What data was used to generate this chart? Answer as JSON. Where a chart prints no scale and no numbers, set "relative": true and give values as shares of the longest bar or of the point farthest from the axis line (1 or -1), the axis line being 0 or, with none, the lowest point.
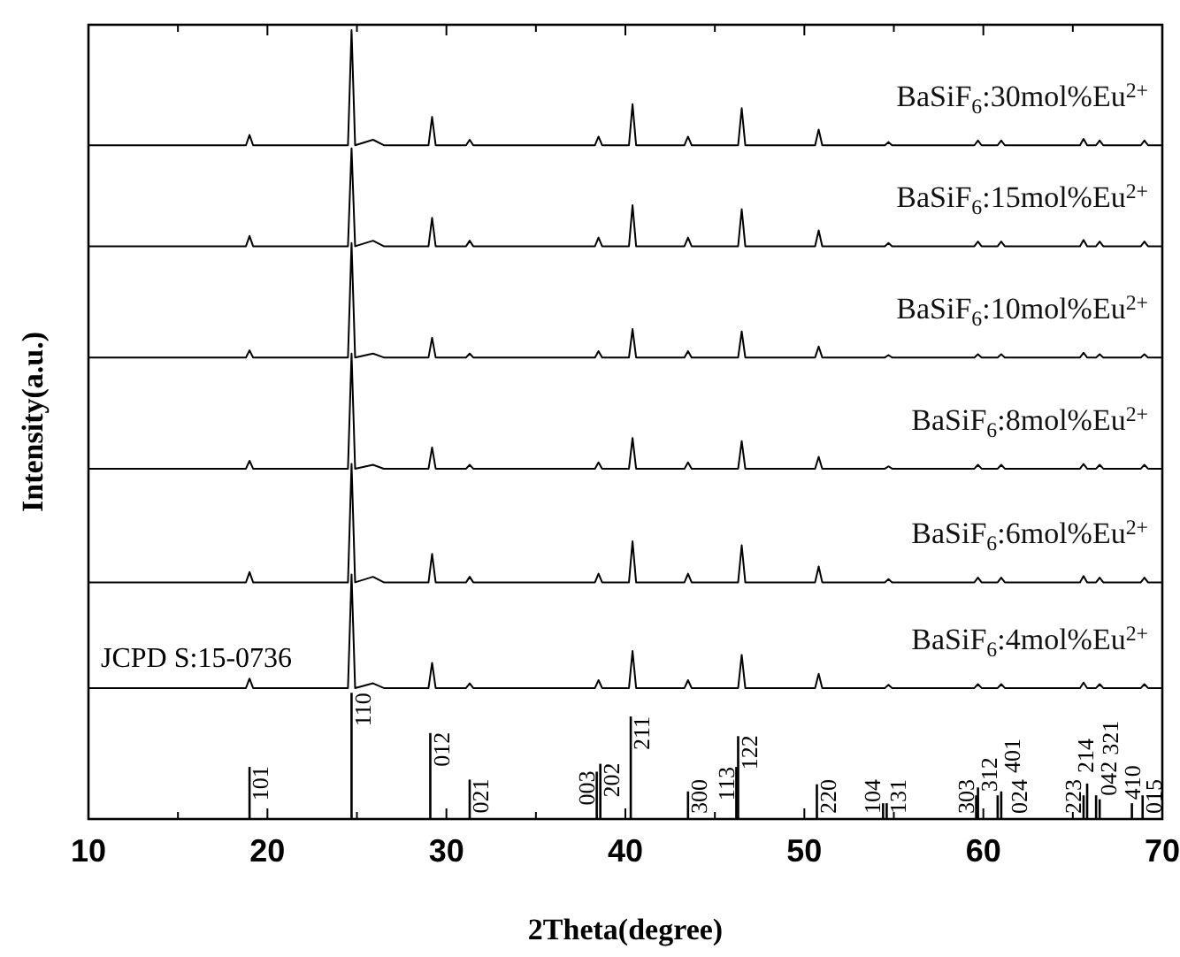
{
  "chart_data": {
    "type": "line",
    "relative": true,
    "xlabel": "2Theta(degree)",
    "ylabel": "Intensity(a.u.)",
    "xlim": [
      10,
      70
    ],
    "xticks": [
      10,
      {
        "value": 15,
        "label": null
      },
      20,
      {
        "value": 25,
        "label": null
      },
      30,
      {
        "value": 35,
        "label": null
      },
      40,
      {
        "value": 45,
        "label": null
      },
      50,
      {
        "value": 55,
        "label": null
      },
      60,
      {
        "value": 65,
        "label": null
      },
      70
    ],
    "x": [
      10,
      18.8,
      19.0,
      19.2,
      24.5,
      24.7,
      24.9,
      25.9,
      26.5,
      29.0,
      29.2,
      29.4,
      31.1,
      31.3,
      31.5,
      38.3,
      38.5,
      38.7,
      40.2,
      40.4,
      40.6,
      43.3,
      43.5,
      43.7,
      46.3,
      46.5,
      46.7,
      50.6,
      50.8,
      51.0,
      54.5,
      54.7,
      54.9,
      59.5,
      59.7,
      59.9,
      60.8,
      61.0,
      61.2,
      65.4,
      65.6,
      65.8,
      66.3,
      66.5,
      66.7,
      68.8,
      69.0,
      69.2,
      70
    ],
    "series": [
      {
        "name": "BaSiF$_{6}$:30mol%Eu$^{2+}$",
        "color": "#000000",
        "values": [
          0.854,
          0.854,
          0.867,
          0.854,
          0.854,
          1,
          0.854,
          0.861,
          0.854,
          0.854,
          0.89,
          0.854,
          0.854,
          0.861,
          0.854,
          0.854,
          0.865,
          0.854,
          0.854,
          0.906,
          0.854,
          0.854,
          0.865,
          0.854,
          0.854,
          0.901,
          0.854,
          0.854,
          0.874,
          0.854,
          0.854,
          0.858,
          0.854,
          0.854,
          0.86,
          0.854,
          0.854,
          0.86,
          0.854,
          0.854,
          0.862,
          0.854,
          0.854,
          0.86,
          0.854,
          0.854,
          0.86,
          0.854,
          0.854
        ]
      },
      {
        "name": "BaSiF$_{6}$:15mol%Eu$^{2+}$",
        "color": "#000000",
        "values": [
          0.726,
          0.726,
          0.739,
          0.726,
          0.726,
          0.85,
          0.726,
          0.733,
          0.726,
          0.726,
          0.762,
          0.726,
          0.726,
          0.733,
          0.726,
          0.726,
          0.737,
          0.726,
          0.726,
          0.778,
          0.726,
          0.726,
          0.737,
          0.726,
          0.726,
          0.773,
          0.726,
          0.726,
          0.746,
          0.726,
          0.726,
          0.73,
          0.726,
          0.726,
          0.732,
          0.726,
          0.726,
          0.732,
          0.726,
          0.726,
          0.734,
          0.726,
          0.726,
          0.732,
          0.726,
          0.726,
          0.732,
          0.726,
          0.726
        ]
      },
      {
        "name": "BaSiF$_{6}$:10mol%Eu$^{2+}$",
        "color": "#000000",
        "values": [
          0.585,
          0.585,
          0.594,
          0.585,
          0.585,
          0.73,
          0.585,
          0.59,
          0.585,
          0.585,
          0.61,
          0.585,
          0.585,
          0.59,
          0.585,
          0.585,
          0.593,
          0.585,
          0.585,
          0.621,
          0.585,
          0.585,
          0.593,
          0.585,
          0.585,
          0.618,
          0.585,
          0.585,
          0.599,
          0.585,
          0.585,
          0.588,
          0.585,
          0.585,
          0.589,
          0.585,
          0.585,
          0.589,
          0.585,
          0.585,
          0.591,
          0.585,
          0.585,
          0.589,
          0.585,
          0.585,
          0.589,
          0.585,
          0.585
        ]
      },
      {
        "name": "BaSiF$_{6}$:8mol%Eu$^{2+}$",
        "color": "#000000",
        "values": [
          0.444,
          0.444,
          0.454,
          0.444,
          0.444,
          0.59,
          0.444,
          0.449,
          0.444,
          0.444,
          0.471,
          0.444,
          0.444,
          0.449,
          0.444,
          0.444,
          0.452,
          0.444,
          0.444,
          0.483,
          0.444,
          0.444,
          0.452,
          0.444,
          0.444,
          0.479,
          0.444,
          0.444,
          0.459,
          0.444,
          0.444,
          0.447,
          0.444,
          0.444,
          0.449,
          0.444,
          0.444,
          0.449,
          0.444,
          0.444,
          0.45,
          0.444,
          0.444,
          0.449,
          0.444,
          0.444,
          0.449,
          0.444,
          0.444
        ]
      },
      {
        "name": "BaSiF$_{6}$:6mol%Eu$^{2+}$",
        "color": "#000000",
        "values": [
          0.3,
          0.3,
          0.313,
          0.3,
          0.3,
          0.45,
          0.3,
          0.307,
          0.3,
          0.3,
          0.336,
          0.3,
          0.3,
          0.307,
          0.3,
          0.3,
          0.311,
          0.3,
          0.3,
          0.352,
          0.3,
          0.3,
          0.311,
          0.3,
          0.3,
          0.347,
          0.3,
          0.3,
          0.32,
          0.3,
          0.3,
          0.304,
          0.3,
          0.3,
          0.306,
          0.3,
          0.3,
          0.306,
          0.3,
          0.3,
          0.308,
          0.3,
          0.3,
          0.306,
          0.3,
          0.3,
          0.306,
          0.3,
          0.3
        ]
      },
      {
        "name": "BaSiF$_{6}$:4mol%Eu$^{2+}$",
        "color": "#000000",
        "values": [
          0.166,
          0.166,
          0.178,
          0.166,
          0.166,
          0.31,
          0.166,
          0.172,
          0.166,
          0.166,
          0.198,
          0.166,
          0.166,
          0.172,
          0.166,
          0.166,
          0.176,
          0.166,
          0.166,
          0.213,
          0.166,
          0.166,
          0.176,
          0.166,
          0.166,
          0.208,
          0.166,
          0.166,
          0.184,
          0.166,
          0.166,
          0.17,
          0.166,
          0.166,
          0.171,
          0.166,
          0.166,
          0.171,
          0.166,
          0.166,
          0.173,
          0.166,
          0.166,
          0.171,
          0.166,
          0.166,
          0.171,
          0.166,
          0.166
        ]
      },
      {
        "type": "bar",
        "color": "#000000",
        "x": [
          19.0,
          24.7,
          29.1,
          31.3,
          38.4,
          38.6,
          40.3,
          43.5,
          46.2,
          46.3,
          50.7,
          54.4,
          54.6,
          59.6,
          59.7,
          60.8,
          61.0,
          65.6,
          65.8,
          66.3,
          66.5,
          68.3,
          68.9
        ],
        "values": [
          0.066,
          0.16,
          0.109,
          0.05,
          0.06,
          0.07,
          0.13,
          0.035,
          0.066,
          0.105,
          0.044,
          0.02,
          0.02,
          0.03,
          0.04,
          0.03,
          0.035,
          0.03,
          0.045,
          0.03,
          0.025,
          0.02,
          0.03
        ]
      }
    ],
    "annotations": [
      "JCPD S:15-0736",
      {
        "text": "101",
        "x": 19.0,
        "y": 0.066
      },
      {
        "text": "110",
        "x": 24.7,
        "y": 0.16
      },
      {
        "text": "012",
        "x": 29.1,
        "y": 0.109
      },
      {
        "text": "021",
        "x": 31.3,
        "y": 0.05
      },
      {
        "text": "003",
        "x": 38.4,
        "y": 0.06
      },
      {
        "text": "202",
        "x": 38.6,
        "y": 0.07
      },
      {
        "text": "211",
        "x": 40.3,
        "y": 0.13
      },
      {
        "text": "300",
        "x": 43.5,
        "y": 0.035
      },
      {
        "text": "113",
        "x": 46.2,
        "y": 0.066
      },
      {
        "text": "122",
        "x": 46.3,
        "y": 0.105
      },
      {
        "text": "220",
        "x": 50.7,
        "y": 0.044
      },
      {
        "text": "104",
        "x": 54.4,
        "y": 0.02
      },
      {
        "text": "131",
        "x": 54.6,
        "y": 0.02
      },
      {
        "text": "303",
        "x": 59.6,
        "y": 0.03
      },
      {
        "text": "312",
        "x": 59.7,
        "y": 0.04
      },
      {
        "text": "024",
        "x": 60.8,
        "y": 0.03
      },
      {
        "text": "401",
        "x": 61.0,
        "y": 0.035
      },
      {
        "text": "223",
        "x": 65.6,
        "y": 0.03
      },
      {
        "text": "042",
        "x": 65.8,
        "y": 0.045
      },
      {
        "text": "214",
        "x": 66.3,
        "y": 0.03
      },
      {
        "text": "321",
        "x": 66.5,
        "y": 0.025
      },
      {
        "text": "015",
        "x": 68.3,
        "y": 0.02
      },
      {
        "text": "410",
        "x": 68.9,
        "y": 0.03
      }
    ]
  }
}
